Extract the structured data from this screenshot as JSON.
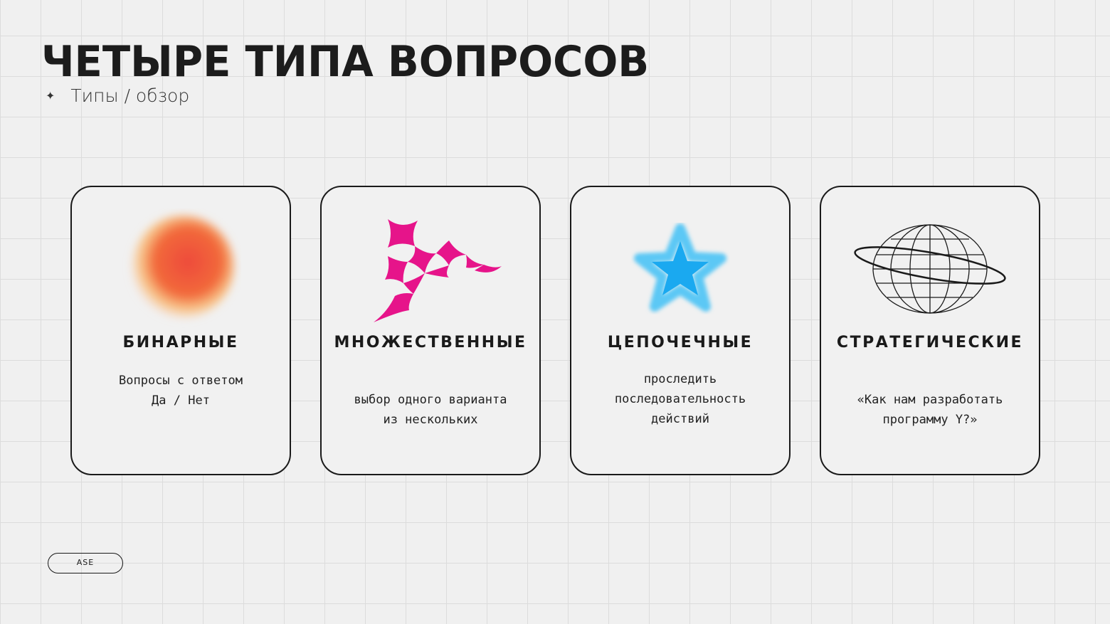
{
  "title": "ЧЕТЫРЕ ТИПА ВОПРОСОВ",
  "subtitle": "Типы / обзор",
  "cards": [
    {
      "title": "БИНАРНЫЕ",
      "lines": [
        "Вопросы с ответом",
        "Да / Нет"
      ],
      "icon": "gradient-blob-icon",
      "color": "#f05a3a"
    },
    {
      "title": "МНОЖЕСТВЕННЫЕ",
      "lines": [
        "выбор одного варианта",
        "из нескольких"
      ],
      "icon": "checkered-shape-icon",
      "color": "#e6148a"
    },
    {
      "title": "ЦЕПОЧЕЧНЫЕ",
      "lines": [
        "проследить",
        "последовательность",
        "действий"
      ],
      "icon": "star-icon",
      "color": "#1aa9f0"
    },
    {
      "title": "СТРАТЕГИЧЕСКИЕ",
      "lines": [
        "«Как нам разработать",
        "программу Y?»"
      ],
      "icon": "globe-ring-icon",
      "color": "#1a1a1a"
    }
  ],
  "badge": "ASE"
}
